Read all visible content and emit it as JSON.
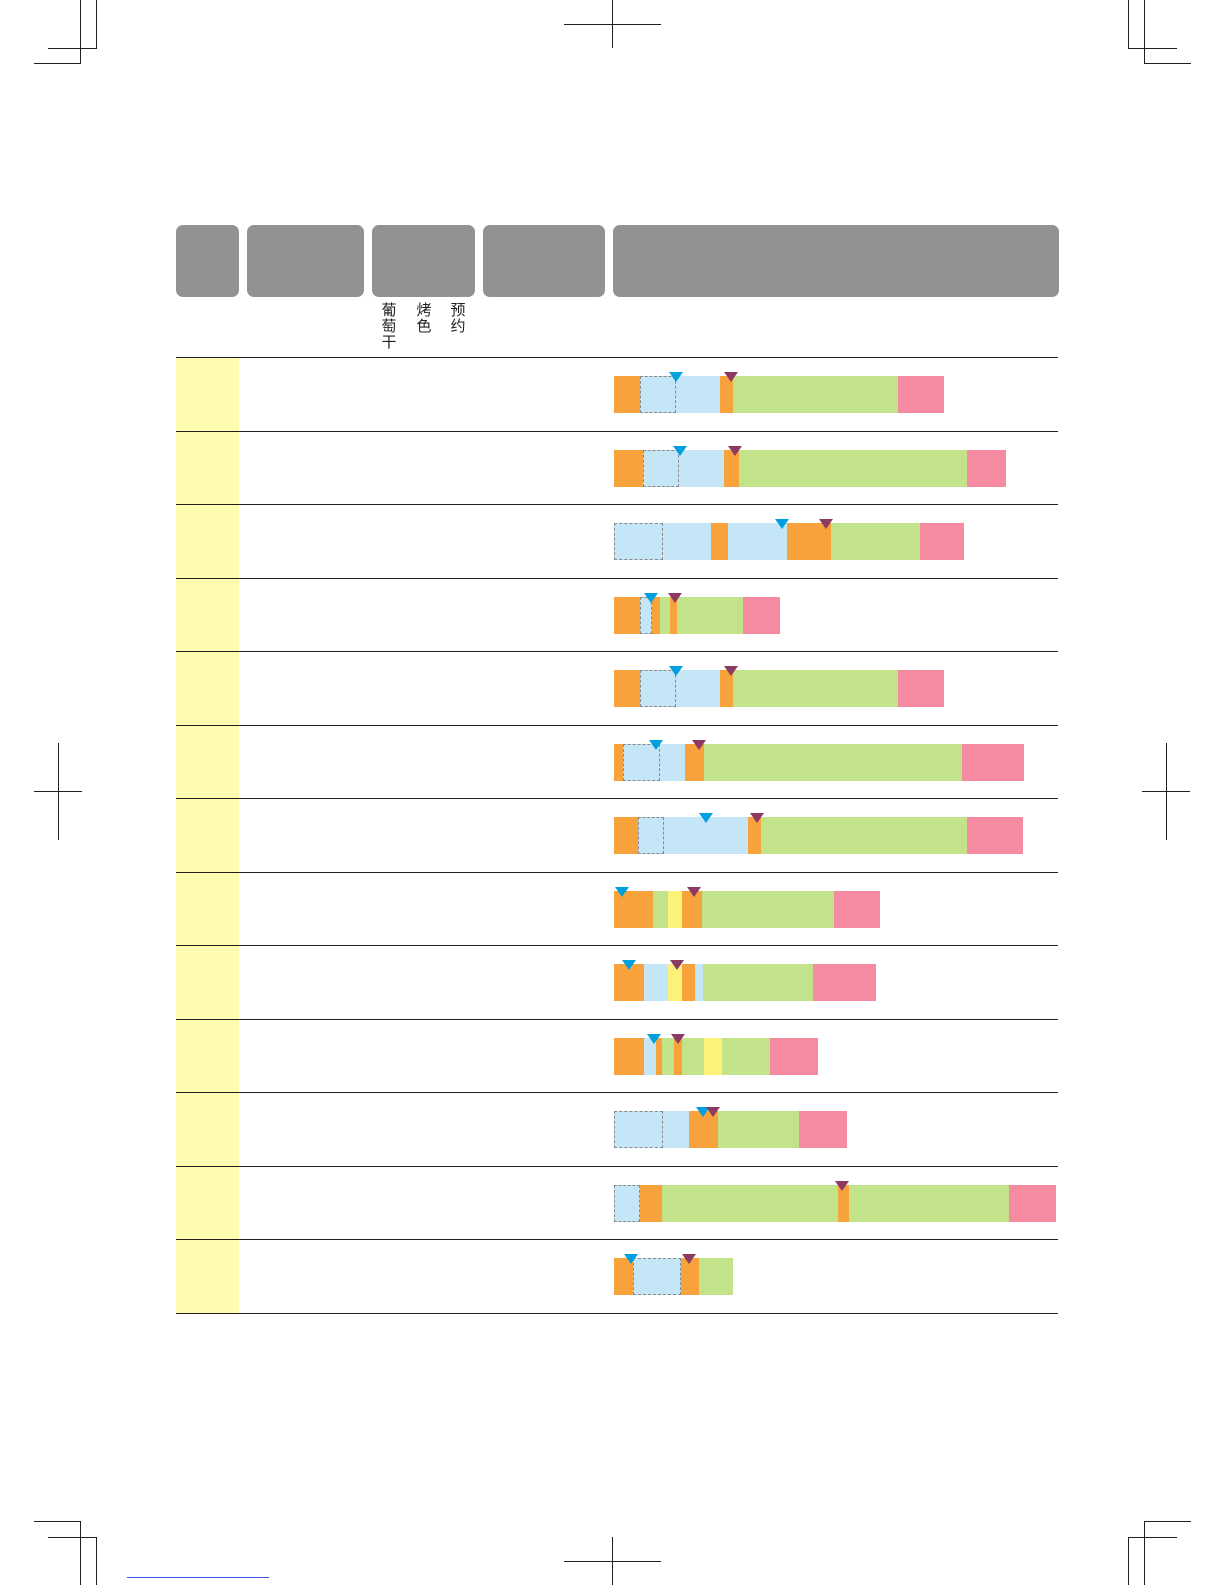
{
  "header": {
    "subheading": [
      {
        "chars": [
          "葡",
          "萄",
          "干"
        ]
      },
      {
        "chars": [
          "烤",
          "色"
        ]
      },
      {
        "chars": [
          "预",
          "约"
        ]
      }
    ]
  },
  "colors": {
    "orange": "#f7a23b",
    "light_blue": "#c4e6f7",
    "green": "#c3e38a",
    "pink": "#f58aa0",
    "yellow": "#fcf27a",
    "marker_blue": "#00a0e0",
    "marker_purple": "#8b3a62",
    "row_highlight": "#fffbb0",
    "header_box": "#929292"
  },
  "programs": [
    {
      "segments": [
        [
          "orange",
          26
        ],
        [
          "blue",
          80
        ],
        [
          "orange",
          13
        ],
        [
          "green",
          165
        ],
        [
          "pink",
          46
        ]
      ],
      "dashed": [
        26,
        36
      ],
      "markers": [
        [
          "blue",
          62
        ],
        [
          "purple",
          117
        ]
      ]
    },
    {
      "segments": [
        [
          "orange",
          29
        ],
        [
          "blue",
          81
        ],
        [
          "orange",
          15
        ],
        [
          "green",
          228
        ],
        [
          "pink",
          39
        ]
      ],
      "dashed": [
        29,
        36
      ],
      "markers": [
        [
          "blue",
          66
        ],
        [
          "purple",
          121
        ]
      ]
    },
    {
      "segments": [
        [
          "blue",
          97
        ],
        [
          "orange",
          17
        ],
        [
          "blue",
          59
        ],
        [
          "orange",
          44
        ],
        [
          "green",
          89
        ],
        [
          "pink",
          44
        ]
      ],
      "dashed": [
        0,
        49
      ],
      "markers": [
        [
          "blue",
          168
        ],
        [
          "purple",
          212
        ]
      ]
    },
    {
      "segments": [
        [
          "orange",
          26
        ],
        [
          "blue",
          12
        ],
        [
          "orange",
          8
        ],
        [
          "green",
          10
        ],
        [
          "orange",
          7
        ],
        [
          "green",
          66
        ],
        [
          "pink",
          37
        ]
      ],
      "dashed": [
        26,
        12
      ],
      "markers": [
        [
          "blue",
          37
        ],
        [
          "purple",
          61
        ]
      ]
    },
    {
      "segments": [
        [
          "orange",
          26
        ],
        [
          "blue",
          80
        ],
        [
          "orange",
          13
        ],
        [
          "green",
          165
        ],
        [
          "pink",
          46
        ]
      ],
      "dashed": [
        26,
        36
      ],
      "markers": [
        [
          "blue",
          62
        ],
        [
          "purple",
          117
        ]
      ]
    },
    {
      "segments": [
        [
          "orange",
          9
        ],
        [
          "blue",
          62
        ],
        [
          "orange",
          19
        ],
        [
          "green",
          258
        ],
        [
          "pink",
          62
        ]
      ],
      "dashed": [
        9,
        37
      ],
      "markers": [
        [
          "blue",
          42
        ],
        [
          "purple",
          85
        ]
      ]
    },
    {
      "segments": [
        [
          "orange",
          24
        ],
        [
          "blue",
          110
        ],
        [
          "orange",
          13
        ],
        [
          "green",
          206
        ],
        [
          "pink",
          56
        ]
      ],
      "dashed": [
        24,
        26
      ],
      "markers": [
        [
          "blue",
          92
        ],
        [
          "purple",
          143
        ]
      ]
    },
    {
      "segments": [
        [
          "orange",
          39
        ],
        [
          "green",
          15
        ],
        [
          "yellow",
          14
        ],
        [
          "orange",
          20
        ],
        [
          "green",
          132
        ],
        [
          "pink",
          46
        ]
      ],
      "dashed": null,
      "markers": [
        [
          "blue",
          8
        ],
        [
          "purple",
          80
        ]
      ]
    },
    {
      "segments": [
        [
          "orange",
          30
        ],
        [
          "blue",
          24
        ],
        [
          "yellow",
          14
        ],
        [
          "orange",
          13
        ],
        [
          "blue",
          8
        ],
        [
          "green",
          110
        ],
        [
          "pink",
          63
        ]
      ],
      "dashed": null,
      "markers": [
        [
          "blue",
          15
        ],
        [
          "purple",
          63
        ]
      ]
    },
    {
      "segments": [
        [
          "orange",
          30
        ],
        [
          "blue",
          12
        ],
        [
          "orange",
          6
        ],
        [
          "green",
          12
        ],
        [
          "orange",
          8
        ],
        [
          "green",
          22
        ],
        [
          "yellow",
          18
        ],
        [
          "green",
          48
        ],
        [
          "pink",
          48
        ]
      ],
      "dashed": null,
      "markers": [
        [
          "blue",
          40
        ],
        [
          "purple",
          64
        ]
      ]
    },
    {
      "segments": [
        [
          "blue",
          75
        ],
        [
          "orange",
          29
        ],
        [
          "green",
          81
        ],
        [
          "pink",
          48
        ]
      ],
      "dashed": [
        0,
        49
      ],
      "markers": [
        [
          "blue",
          89
        ],
        [
          "purple",
          99
        ]
      ]
    },
    {
      "segments": [
        [
          "blue",
          26
        ],
        [
          "orange",
          22
        ],
        [
          "green",
          176
        ],
        [
          "orange",
          11
        ],
        [
          "green",
          160
        ],
        [
          "pink",
          47
        ]
      ],
      "dashed": [
        0,
        26
      ],
      "markers": [
        [
          "purple",
          228
        ]
      ]
    },
    {
      "segments": [
        [
          "orange",
          19
        ],
        [
          "blue",
          48
        ],
        [
          "orange",
          18
        ],
        [
          "green",
          34
        ]
      ],
      "dashed": [
        19,
        48
      ],
      "markers": [
        [
          "blue",
          17
        ],
        [
          "purple",
          75
        ]
      ]
    }
  ]
}
